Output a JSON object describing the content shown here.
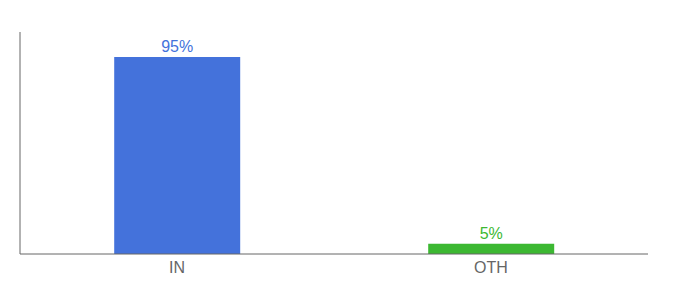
{
  "chart_data": {
    "type": "bar",
    "categories": [
      "IN",
      "OTH"
    ],
    "values": [
      95,
      5
    ],
    "value_labels": [
      "95%",
      "5%"
    ],
    "colors": [
      "#4472db",
      "#3cb832"
    ],
    "ylim": [
      0,
      107
    ],
    "data_labels": true,
    "tick_labels": "x",
    "grid": false
  }
}
